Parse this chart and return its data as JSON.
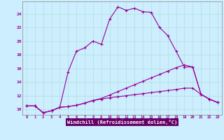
{
  "xlabel": "Windchill (Refroidissement éolien,°C)",
  "bg_color": "#cceeff",
  "line_color": "#990099",
  "xlabel_bg": "#660066",
  "xlabel_fg": "#ffffff",
  "x_ticks": [
    0,
    1,
    2,
    3,
    4,
    5,
    6,
    7,
    8,
    9,
    10,
    11,
    12,
    13,
    14,
    15,
    16,
    17,
    18,
    19,
    20,
    21,
    22,
    23
  ],
  "y_ticks": [
    10,
    12,
    14,
    16,
    18,
    20,
    22,
    24
  ],
  "xlim": [
    -0.5,
    23.5
  ],
  "ylim": [
    9.2,
    25.8
  ],
  "line1_x": [
    0,
    1,
    2,
    3,
    4,
    5,
    6,
    7,
    8,
    9,
    10,
    11,
    12,
    13,
    14,
    15,
    16,
    17,
    18,
    19,
    20,
    21,
    22,
    23
  ],
  "line1_y": [
    10.5,
    10.5,
    9.5,
    9.8,
    10.3,
    15.5,
    18.5,
    19.0,
    20.0,
    19.5,
    23.2,
    25.0,
    24.5,
    24.8,
    24.3,
    24.2,
    22.0,
    20.8,
    18.5,
    16.2,
    16.2,
    12.2,
    11.5,
    11.0
  ],
  "line2_x": [
    0,
    1,
    2,
    3,
    4,
    5,
    6,
    7,
    8,
    9,
    10,
    11,
    12,
    13,
    14,
    15,
    16,
    17,
    18,
    19,
    20,
    21,
    22,
    23
  ],
  "line2_y": [
    10.5,
    10.5,
    9.5,
    9.8,
    10.3,
    10.4,
    10.6,
    10.9,
    11.3,
    11.6,
    12.1,
    12.6,
    13.1,
    13.6,
    14.1,
    14.6,
    15.1,
    15.6,
    16.1,
    16.5,
    16.2,
    12.2,
    11.5,
    11.0
  ],
  "line3_x": [
    0,
    1,
    2,
    3,
    4,
    5,
    6,
    7,
    8,
    9,
    10,
    11,
    12,
    13,
    14,
    15,
    16,
    17,
    18,
    19,
    20,
    21,
    22,
    23
  ],
  "line3_y": [
    10.5,
    10.5,
    9.5,
    9.8,
    10.3,
    10.4,
    10.6,
    10.9,
    11.3,
    11.5,
    11.7,
    11.85,
    12.0,
    12.15,
    12.3,
    12.45,
    12.6,
    12.75,
    12.9,
    13.1,
    13.1,
    12.2,
    11.5,
    11.0
  ]
}
